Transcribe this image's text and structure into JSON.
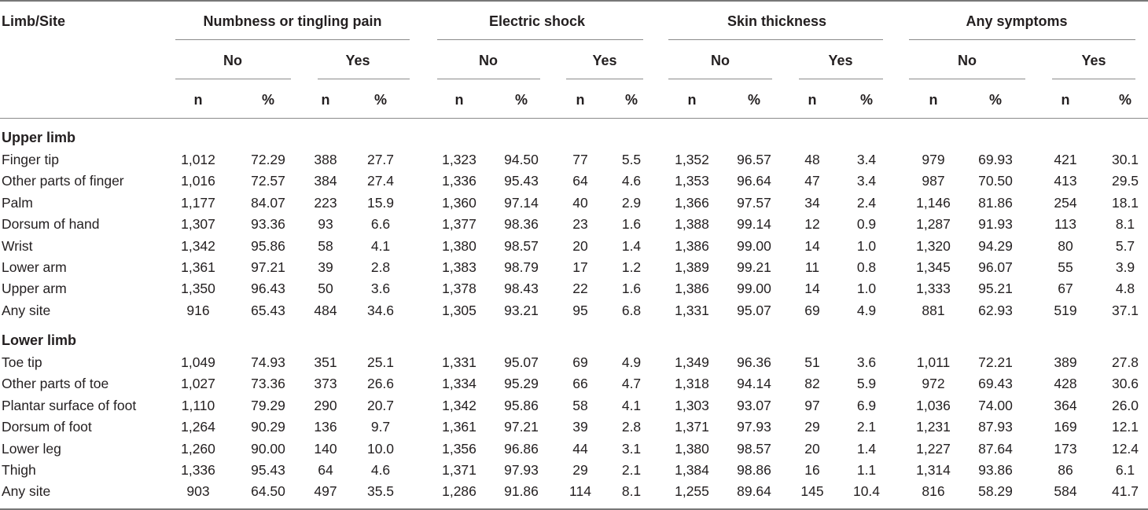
{
  "header": {
    "row_label": "Limb/Site",
    "groups": [
      "Numbness or tingling pain",
      "Electric shock",
      "Skin thickness",
      "Any symptoms"
    ],
    "subgroups": [
      "No",
      "Yes"
    ],
    "stats": [
      "n",
      "%"
    ]
  },
  "sections": [
    {
      "title": "Upper limb",
      "rows": [
        {
          "site": "Finger tip",
          "values": [
            "1,012",
            "72.29",
            "388",
            "27.7",
            "1,323",
            "94.50",
            "77",
            "5.5",
            "1,352",
            "96.57",
            "48",
            "3.4",
            "979",
            "69.93",
            "421",
            "30.1"
          ]
        },
        {
          "site": "Other parts of finger",
          "values": [
            "1,016",
            "72.57",
            "384",
            "27.4",
            "1,336",
            "95.43",
            "64",
            "4.6",
            "1,353",
            "96.64",
            "47",
            "3.4",
            "987",
            "70.50",
            "413",
            "29.5"
          ]
        },
        {
          "site": "Palm",
          "values": [
            "1,177",
            "84.07",
            "223",
            "15.9",
            "1,360",
            "97.14",
            "40",
            "2.9",
            "1,366",
            "97.57",
            "34",
            "2.4",
            "1,146",
            "81.86",
            "254",
            "18.1"
          ]
        },
        {
          "site": "Dorsum of hand",
          "values": [
            "1,307",
            "93.36",
            "93",
            "6.6",
            "1,377",
            "98.36",
            "23",
            "1.6",
            "1,388",
            "99.14",
            "12",
            "0.9",
            "1,287",
            "91.93",
            "113",
            "8.1"
          ]
        },
        {
          "site": "Wrist",
          "values": [
            "1,342",
            "95.86",
            "58",
            "4.1",
            "1,380",
            "98.57",
            "20",
            "1.4",
            "1,386",
            "99.00",
            "14",
            "1.0",
            "1,320",
            "94.29",
            "80",
            "5.7"
          ]
        },
        {
          "site": "Lower arm",
          "values": [
            "1,361",
            "97.21",
            "39",
            "2.8",
            "1,383",
            "98.79",
            "17",
            "1.2",
            "1,389",
            "99.21",
            "11",
            "0.8",
            "1,345",
            "96.07",
            "55",
            "3.9"
          ]
        },
        {
          "site": "Upper arm",
          "values": [
            "1,350",
            "96.43",
            "50",
            "3.6",
            "1,378",
            "98.43",
            "22",
            "1.6",
            "1,386",
            "99.00",
            "14",
            "1.0",
            "1,333",
            "95.21",
            "67",
            "4.8"
          ]
        },
        {
          "site": "Any site",
          "values": [
            "916",
            "65.43",
            "484",
            "34.6",
            "1,305",
            "93.21",
            "95",
            "6.8",
            "1,331",
            "95.07",
            "69",
            "4.9",
            "881",
            "62.93",
            "519",
            "37.1"
          ]
        }
      ]
    },
    {
      "title": "Lower limb",
      "rows": [
        {
          "site": "Toe tip",
          "values": [
            "1,049",
            "74.93",
            "351",
            "25.1",
            "1,331",
            "95.07",
            "69",
            "4.9",
            "1,349",
            "96.36",
            "51",
            "3.6",
            "1,011",
            "72.21",
            "389",
            "27.8"
          ]
        },
        {
          "site": "Other parts of toe",
          "values": [
            "1,027",
            "73.36",
            "373",
            "26.6",
            "1,334",
            "95.29",
            "66",
            "4.7",
            "1,318",
            "94.14",
            "82",
            "5.9",
            "972",
            "69.43",
            "428",
            "30.6"
          ]
        },
        {
          "site": "Plantar surface of foot",
          "values": [
            "1,110",
            "79.29",
            "290",
            "20.7",
            "1,342",
            "95.86",
            "58",
            "4.1",
            "1,303",
            "93.07",
            "97",
            "6.9",
            "1,036",
            "74.00",
            "364",
            "26.0"
          ]
        },
        {
          "site": "Dorsum of foot",
          "values": [
            "1,264",
            "90.29",
            "136",
            "9.7",
            "1,361",
            "97.21",
            "39",
            "2.8",
            "1,371",
            "97.93",
            "29",
            "2.1",
            "1,231",
            "87.93",
            "169",
            "12.1"
          ]
        },
        {
          "site": "Lower leg",
          "values": [
            "1,260",
            "90.00",
            "140",
            "10.0",
            "1,356",
            "96.86",
            "44",
            "3.1",
            "1,380",
            "98.57",
            "20",
            "1.4",
            "1,227",
            "87.64",
            "173",
            "12.4"
          ]
        },
        {
          "site": "Thigh",
          "values": [
            "1,336",
            "95.43",
            "64",
            "4.6",
            "1,371",
            "97.93",
            "29",
            "2.1",
            "1,384",
            "98.86",
            "16",
            "1.1",
            "1,314",
            "93.86",
            "86",
            "6.1"
          ]
        },
        {
          "site": "Any site",
          "values": [
            "903",
            "64.50",
            "497",
            "35.5",
            "1,286",
            "91.86",
            "114",
            "8.1",
            "1,255",
            "89.64",
            "145",
            "10.4",
            "816",
            "58.29",
            "584",
            "41.7"
          ]
        }
      ]
    }
  ]
}
